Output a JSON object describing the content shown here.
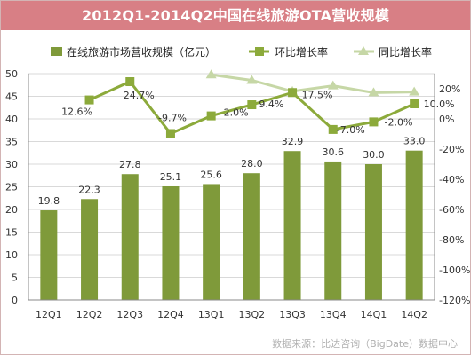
{
  "chart_data": {
    "type": "bar+line",
    "title": "2012Q1-2014Q2中国在线旅游OTA营收规模",
    "categories": [
      "12Q1",
      "12Q2",
      "12Q3",
      "12Q4",
      "13Q1",
      "13Q2",
      "13Q3",
      "13Q4",
      "14Q1",
      "14Q2"
    ],
    "bar_series": {
      "name": "在线旅游市场营收规模（亿元）",
      "values": [
        19.8,
        22.3,
        27.8,
        25.1,
        25.6,
        28.0,
        32.9,
        30.6,
        30.0,
        33.0
      ],
      "labels": [
        "19.8",
        "22.3",
        "27.8",
        "25.1",
        "25.6",
        "28.0",
        "32.9",
        "30.6",
        "30.0",
        "33.0"
      ],
      "color": "#7f9a3a"
    },
    "line_series": [
      {
        "name": "环比增长率",
        "values": [
          null,
          12.6,
          24.7,
          -9.7,
          2.0,
          9.4,
          17.5,
          -7.0,
          -2.0,
          10.0
        ],
        "labels": [
          "",
          "12.6%",
          "24.7%",
          "-9.7%",
          "2.0%",
          "9.4%",
          "17.5%",
          "-7.0%",
          "-2.0%",
          "10.0%"
        ],
        "color": "#8caa3b"
      },
      {
        "name": "同比增长率",
        "values": [
          null,
          null,
          null,
          null,
          29.3,
          25.6,
          18.3,
          22.0,
          17.4,
          17.9
        ],
        "labels": [],
        "color": "#c6d7a6"
      }
    ],
    "y_left": {
      "min": 0,
      "max": 50,
      "ticks": [
        "0",
        "5",
        "10",
        "15",
        "20",
        "25",
        "30",
        "35",
        "40",
        "45",
        "50"
      ]
    },
    "y_right": {
      "min": -120,
      "max": 30,
      "ticks": [
        "-120%",
        "-100%",
        "-80%",
        "-60%",
        "-40%",
        "-20%",
        "0%",
        "20%"
      ]
    },
    "legend_position": "top",
    "grid": "horizontal"
  },
  "source": "数据来源：比达咨询（BigDate）数据中心"
}
